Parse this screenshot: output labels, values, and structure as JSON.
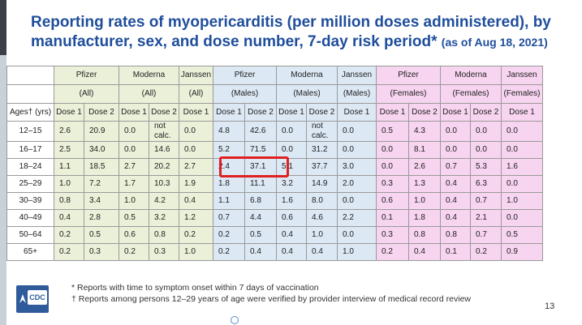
{
  "title": {
    "main": "Reporting rates of myopericarditis (per million doses administered), by manufacturer, sex, and dose number, 7-day risk period*",
    "date": "(as of Aug 18, 2021)"
  },
  "header": {
    "groups": [
      "Pfizer",
      "Moderna",
      "Janssen",
      "Pfizer",
      "Moderna",
      "Janssen",
      "Pfizer",
      "Moderna",
      "Janssen"
    ],
    "subgroups": [
      "(All)",
      "(All)",
      "(All)",
      "(Males)",
      "(Males)",
      "(Males)",
      "(Females)",
      "(Females)",
      "(Females)"
    ],
    "age_label": "Ages† (yrs)",
    "dose_labels": [
      "Dose 1",
      "Dose 2",
      "Dose 1",
      "Dose 2",
      "Dose 1",
      "Dose 1",
      "Dose 2",
      "Dose 1",
      "Dose 2",
      "Dose 1",
      "Dose 1",
      "Dose 2",
      "Dose 1",
      "Dose 2",
      "Dose 1"
    ]
  },
  "rows": [
    {
      "age": "12–15",
      "v": [
        "2.6",
        "20.9",
        "0.0",
        "not calc.",
        "0.0",
        "4.8",
        "42.6",
        "0.0",
        "not calc.",
        "0.0",
        "0.5",
        "4.3",
        "0.0",
        "0.0",
        "0.0"
      ]
    },
    {
      "age": "16–17",
      "v": [
        "2.5",
        "34.0",
        "0.0",
        "14.6",
        "0.0",
        "5.2",
        "71.5",
        "0.0",
        "31.2",
        "0.0",
        "0.0",
        "8.1",
        "0.0",
        "0.0",
        "0.0"
      ]
    },
    {
      "age": "18–24",
      "v": [
        "1.1",
        "18.5",
        "2.7",
        "20.2",
        "2.7",
        "2.4",
        "37.1",
        "5.1",
        "37.7",
        "3.0",
        "0.0",
        "2.6",
        "0.7",
        "5.3",
        "1.6"
      ]
    },
    {
      "age": "25–29",
      "v": [
        "1.0",
        "7.2",
        "1.7",
        "10.3",
        "1.9",
        "1.8",
        "11.1",
        "3.2",
        "14.9",
        "2.0",
        "0.3",
        "1.3",
        "0.4",
        "6.3",
        "0.0"
      ]
    },
    {
      "age": "30–39",
      "v": [
        "0.8",
        "3.4",
        "1.0",
        "4.2",
        "0.4",
        "1.1",
        "6.8",
        "1.6",
        "8.0",
        "0.0",
        "0.6",
        "1.0",
        "0.4",
        "0.7",
        "1.0"
      ]
    },
    {
      "age": "40–49",
      "v": [
        "0.4",
        "2.8",
        "0.5",
        "3.2",
        "1.2",
        "0.7",
        "4.4",
        "0.6",
        "4.6",
        "2.2",
        "0.1",
        "1.8",
        "0.4",
        "2.1",
        "0.0"
      ]
    },
    {
      "age": "50–64",
      "v": [
        "0.2",
        "0.5",
        "0.6",
        "0.8",
        "0.2",
        "0.2",
        "0.5",
        "0.4",
        "1.0",
        "0.0",
        "0.3",
        "0.8",
        "0.8",
        "0.7",
        "0.5"
      ]
    },
    {
      "age": "65+",
      "v": [
        "0.2",
        "0.3",
        "0.2",
        "0.3",
        "1.0",
        "0.2",
        "0.4",
        "0.4",
        "0.4",
        "1.0",
        "0.2",
        "0.4",
        "0.1",
        "0.2",
        "0.9"
      ]
    }
  ],
  "footnotes": {
    "note1": "* Reports with time to symptom onset within 7 days of vaccination",
    "note2": "† Reports among persons 12–29 years of age were verified by provider interview of medical record review"
  },
  "logo_text": "CDC",
  "page_number": "13"
}
